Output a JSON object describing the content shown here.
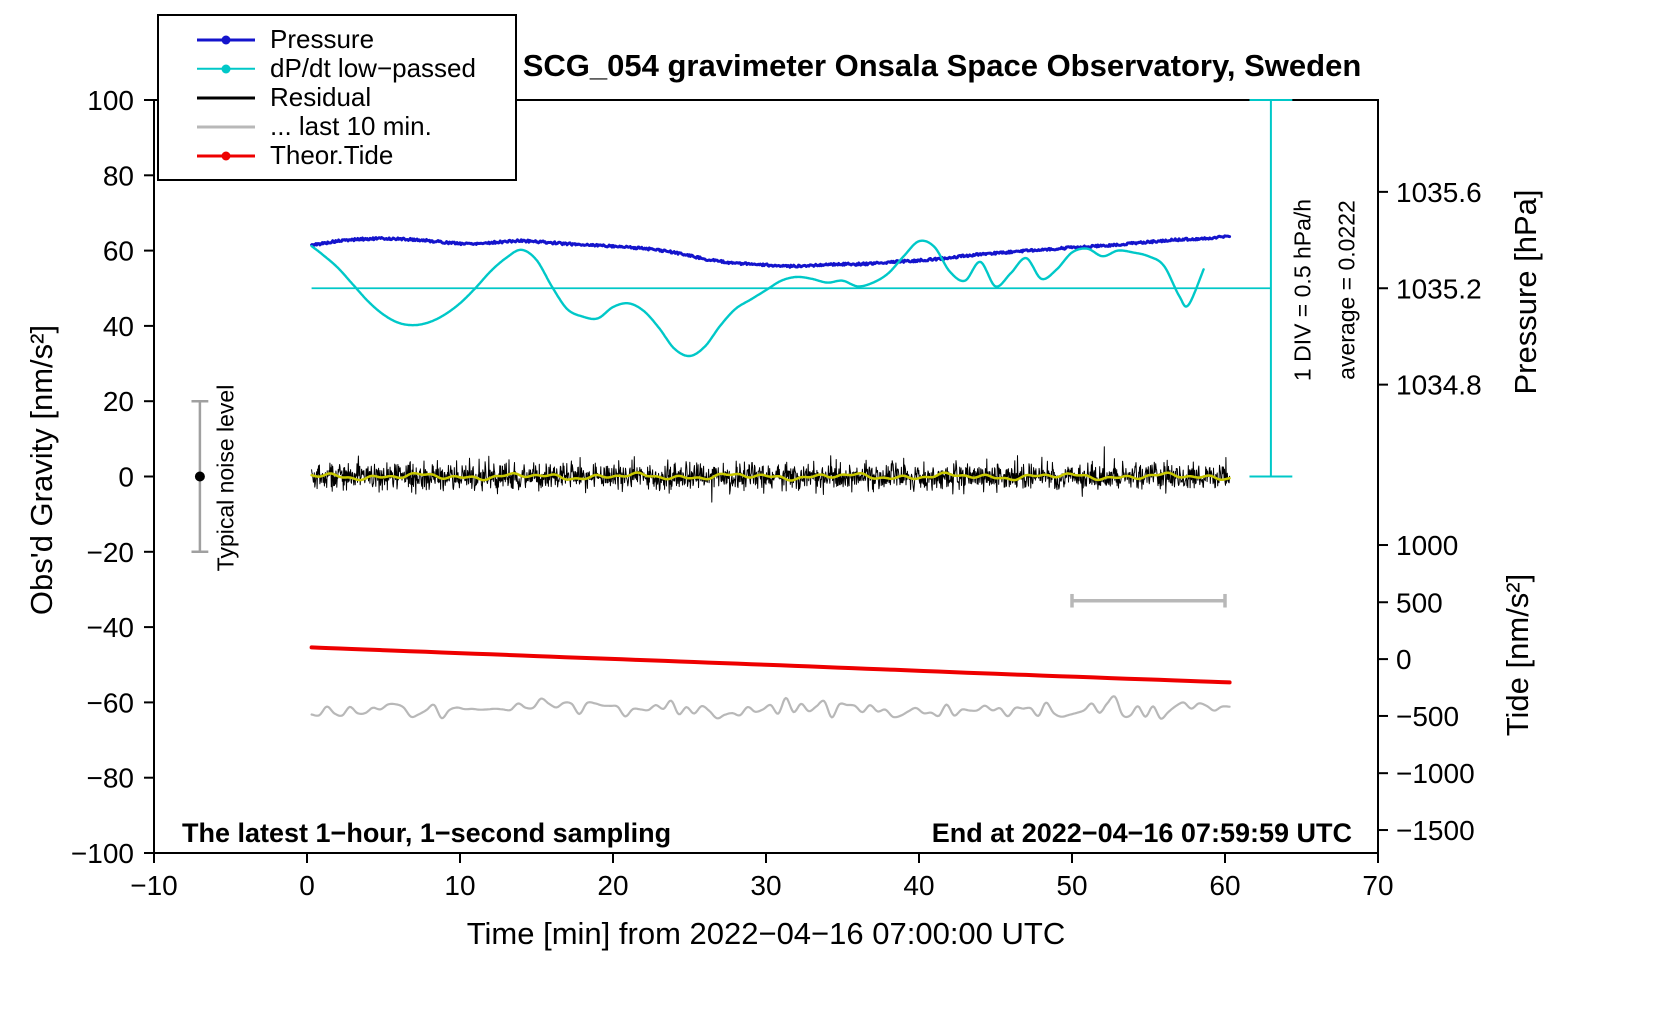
{
  "title": "SCG_054 gravimeter Onsala Space Observatory, Sweden",
  "axes": {
    "x_label": "Time [min] from 2022−04−16 07:00:00 UTC",
    "y_left_label": "Obs'd Gravity [nm/s²]",
    "pressure_label": "Pressure [hPa]",
    "tide_label": "Tide [nm/s²]"
  },
  "annotations": {
    "sampling": "The latest 1−hour, 1−second sampling",
    "end_time": "End at 2022−04−16 07:59:59 UTC",
    "div_scale": "1 DIV = 0.5 hPa/h",
    "average": "average = 0.0222",
    "noise_level": "Typical noise level"
  },
  "legend": [
    {
      "id": "pressure",
      "name": "Pressure",
      "color": "#1414CC",
      "lw": 3,
      "marker": true
    },
    {
      "id": "dpdt",
      "name": "dP/dt low−passed",
      "color": "#00C8C8",
      "lw": 2.5,
      "marker": true
    },
    {
      "id": "residual",
      "name": "Residual",
      "color": "#000000",
      "lw": 3,
      "marker": false
    },
    {
      "id": "last10",
      "name": "... last 10 min.",
      "color": "#B8B8B8",
      "lw": 3,
      "marker": false
    },
    {
      "id": "tide",
      "name": "Theor.Tide",
      "color": "#EE0000",
      "lw": 3,
      "marker": true
    }
  ],
  "chart_data": {
    "type": "line",
    "x_range": [
      -10,
      70
    ],
    "y_range": [
      -100,
      100
    ],
    "x_ticks": [
      {
        "v": -10,
        "label": "−10"
      },
      {
        "v": 0,
        "label": "0"
      },
      {
        "v": 10,
        "label": "10"
      },
      {
        "v": 20,
        "label": "20"
      },
      {
        "v": 30,
        "label": "30"
      },
      {
        "v": 40,
        "label": "40"
      },
      {
        "v": 50,
        "label": "50"
      },
      {
        "v": 60,
        "label": "60"
      },
      {
        "v": 70,
        "label": "70"
      }
    ],
    "y_ticks": [
      {
        "v": -100,
        "label": "−100"
      },
      {
        "v": -80,
        "label": "−80"
      },
      {
        "v": -60,
        "label": "−60"
      },
      {
        "v": -40,
        "label": "−40"
      },
      {
        "v": -20,
        "label": "−20"
      },
      {
        "v": 0,
        "label": "0"
      },
      {
        "v": 20,
        "label": "20"
      },
      {
        "v": 40,
        "label": "40"
      },
      {
        "v": 60,
        "label": "60"
      },
      {
        "v": 80,
        "label": "80"
      },
      {
        "v": 100,
        "label": "100"
      }
    ],
    "pressure_ticks": [
      {
        "label": "1035.6",
        "at": 75.6
      },
      {
        "label": "1035.2",
        "at": 50.0
      },
      {
        "label": "1034.8",
        "at": 24.4
      }
    ],
    "tide_ticks": [
      {
        "label": "1000",
        "at": -18.2
      },
      {
        "label": "500",
        "at": -33.4
      },
      {
        "label": "0",
        "at": -48.5
      },
      {
        "label": "−500",
        "at": -63.6
      },
      {
        "label": "−1000",
        "at": -78.8
      },
      {
        "label": "−1500",
        "at": -93.9
      }
    ],
    "series": [
      {
        "id": "pressure",
        "name": "Pressure",
        "color": "#1414CC",
        "width": 3,
        "noise": 0.3,
        "seed": 5,
        "x": [
          0.3,
          1,
          2,
          3,
          4,
          5,
          6,
          7,
          8,
          9,
          10,
          11,
          12,
          13,
          14,
          15,
          16,
          17,
          18,
          19,
          20,
          21,
          22,
          23,
          24,
          25,
          26,
          27,
          28,
          29,
          30,
          31,
          32,
          33,
          34,
          35,
          36,
          37,
          38,
          39,
          40,
          41,
          42,
          43,
          44,
          45,
          46,
          47,
          48,
          49,
          50,
          51,
          52,
          53,
          54,
          55,
          56,
          57,
          58,
          59,
          60.3
        ],
        "y": [
          61.4,
          61.9,
          62.5,
          62.9,
          63.1,
          63.2,
          63.1,
          62.9,
          62.6,
          62.2,
          61.9,
          61.9,
          62.1,
          62.4,
          62.6,
          62.4,
          62.1,
          61.8,
          61.6,
          61.4,
          61.2,
          60.9,
          60.6,
          60.1,
          59.5,
          58.7,
          57.8,
          57.1,
          56.7,
          56.4,
          56.2,
          55.8,
          55.9,
          56.1,
          56.3,
          56.4,
          56.4,
          56.6,
          56.9,
          57.2,
          57.4,
          57.7,
          58.1,
          58.6,
          59.0,
          59.3,
          59.6,
          60.0,
          60.3,
          60.5,
          60.8,
          61.0,
          61.3,
          61.6,
          62.0,
          62.3,
          62.6,
          62.9,
          63.1,
          63.3,
          63.9
        ]
      },
      {
        "id": "dpdt",
        "name": "dP/dt low−passed",
        "color": "#00C8C8",
        "width": 2.4,
        "x": [
          0.3,
          1,
          2,
          3,
          4,
          5,
          6,
          7,
          8,
          9,
          10,
          11,
          12,
          13,
          14,
          15,
          16,
          17,
          18,
          19,
          20,
          21,
          22,
          23,
          24,
          25,
          26,
          27,
          28,
          29,
          30,
          31,
          32,
          33,
          34,
          35,
          36,
          37,
          38,
          39,
          40,
          41,
          42,
          43,
          44,
          45,
          46,
          47,
          48,
          49,
          50,
          51,
          52,
          53,
          54,
          55,
          56,
          57,
          57.6,
          58.6
        ],
        "y": [
          61.2,
          59,
          55.5,
          51,
          46.5,
          43,
          40.8,
          40.2,
          41,
          43,
          46,
          50,
          54.5,
          58,
          60.2,
          57.5,
          50.5,
          44.5,
          42.5,
          42,
          45,
          46,
          44,
          39.5,
          34,
          32,
          34.5,
          40,
          44.5,
          47,
          49.5,
          52,
          53,
          52.5,
          51.5,
          52,
          50.5,
          51.5,
          54,
          58.5,
          62.5,
          61,
          54.5,
          52,
          57,
          50.5,
          54,
          58,
          52.5,
          55,
          59.5,
          60.5,
          58.5,
          60,
          59.5,
          58.5,
          56,
          48,
          45.5,
          55
        ]
      },
      {
        "id": "residual",
        "name": "Residual",
        "color": "#000000",
        "width": 1,
        "kind": "noise",
        "x_start": 0.3,
        "x_end": 60.3,
        "step": 0.03,
        "mean": 0,
        "std": 1.8,
        "spike_prob": 0.01,
        "spike_scale": 2,
        "clamp": 8.5,
        "seed": 42
      },
      {
        "id": "residual-smoothed",
        "name": "Residual smoothed",
        "color": "#C8C800",
        "width": 2.5,
        "kind": "smooth",
        "x_start": 0.3,
        "x_end": 60.3,
        "mean": 0,
        "amp": 0.8
      },
      {
        "id": "last10",
        "name": "... last 10 min.",
        "color": "#B8B8B8",
        "width": 2.2,
        "kind": "wiggle",
        "x_start": 0.3,
        "x_end": 60.3,
        "step": 0.5,
        "mean": -62,
        "amp": 2,
        "seed": 9
      },
      {
        "id": "tide",
        "name": "Theor.Tide",
        "color": "#EE0000",
        "width": 4,
        "x": [
          0.3,
          15,
          30,
          45,
          60.3
        ],
        "y": [
          -45.4,
          -47.7,
          -50.0,
          -52.4,
          -54.7
        ]
      }
    ],
    "reference": {
      "mean_line": {
        "y": 50,
        "x_start": 0.3,
        "x_end": 63,
        "color": "#00C8C8"
      },
      "div_bar": {
        "x": 63,
        "y_start": 0,
        "y_end": 100,
        "cap": 1.4,
        "color": "#00C8C8"
      },
      "noise_bar": {
        "x": -7,
        "y_start": -20,
        "y_end": 20,
        "cap": 0.55,
        "color": "#A0A0A0",
        "dot_y": 0,
        "dot_color": "#000000"
      },
      "window_bar": {
        "y": -33,
        "x_start": 50,
        "x_end": 60,
        "cap": 1.8,
        "color": "#B8B8B8"
      }
    }
  }
}
